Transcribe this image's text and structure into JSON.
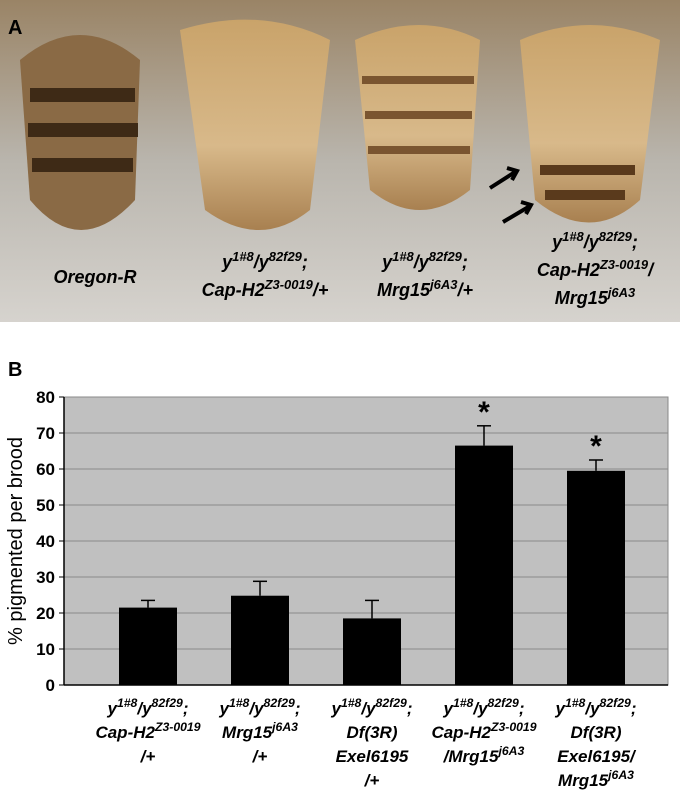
{
  "panel_labels": [
    "A",
    "B"
  ],
  "photo": {
    "labels": [
      [
        [
          "Oregon-R"
        ]
      ],
      [
        [
          "y",
          {
            "sup": "1#8"
          },
          "/y",
          {
            "sup": "82f29"
          },
          ";"
        ],
        [
          "Cap-H2",
          {
            "sup": "Z3-0019"
          },
          "/+"
        ]
      ],
      [
        [
          "y",
          {
            "sup": "1#8"
          },
          "/y",
          {
            "sup": "82f29"
          },
          ";"
        ],
        [
          "Mrg15",
          {
            "sup": "j6A3"
          },
          "/+"
        ]
      ],
      [
        [
          "y",
          {
            "sup": "1#8"
          },
          "/y",
          {
            "sup": "82f29"
          },
          ";"
        ],
        [
          "Cap-H2",
          {
            "sup": "Z3-0019"
          },
          "/"
        ],
        [
          "Mrg15",
          {
            "sup": "j6A3"
          }
        ]
      ]
    ]
  },
  "chart_data": {
    "type": "bar",
    "y_label": "% pigmented per brood",
    "categories": [
      [
        [
          "y",
          {
            "sup": "1#8"
          },
          "/y",
          {
            "sup": "82f29"
          },
          ";"
        ],
        [
          "Cap-H2",
          {
            "sup": "Z3-0019"
          }
        ],
        [
          "/+"
        ]
      ],
      [
        [
          "y",
          {
            "sup": "1#8"
          },
          "/y",
          {
            "sup": "82f29"
          },
          ";"
        ],
        [
          "Mrg15",
          {
            "sup": "j6A3"
          }
        ],
        [
          "/+"
        ]
      ],
      [
        [
          "y",
          {
            "sup": "1#8"
          },
          "/y",
          {
            "sup": "82f29"
          },
          ";"
        ],
        [
          "Df(3R)"
        ],
        [
          "Exel6195"
        ],
        [
          "/+"
        ]
      ],
      [
        [
          "y",
          {
            "sup": "1#8"
          },
          "/y",
          {
            "sup": "82f29"
          },
          ";"
        ],
        [
          "Cap-H2",
          {
            "sup": "Z3-0019"
          }
        ],
        [
          "/Mrg15",
          {
            "sup": "j6A3"
          }
        ]
      ],
      [
        [
          "y",
          {
            "sup": "1#8"
          },
          "/y",
          {
            "sup": "82f29"
          },
          ";"
        ],
        [
          "Df(3R)"
        ],
        [
          "Exel6195/"
        ],
        [
          "Mrg15",
          {
            "sup": "j6A3"
          }
        ]
      ]
    ],
    "values": [
      21.5,
      24.8,
      18.5,
      66.5,
      59.5
    ],
    "errors": [
      2,
      4,
      5,
      5.5,
      3
    ],
    "value_annotations": [
      null,
      null,
      null,
      "*",
      "*"
    ],
    "color": "#000000",
    "ylim": [
      0,
      80
    ],
    "yticks": [
      0,
      10,
      20,
      30,
      40,
      50,
      60,
      70,
      80
    ],
    "grid": true
  }
}
